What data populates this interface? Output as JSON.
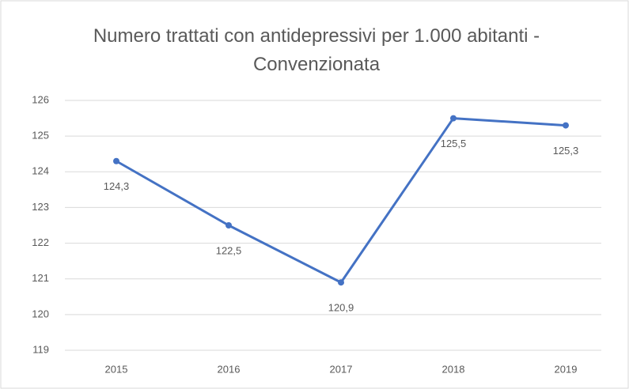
{
  "chart_data": {
    "type": "line",
    "title": "Numero trattati con antidepressivi  per 1.000 abitanti - Convenzionata",
    "categories": [
      "2015",
      "2016",
      "2017",
      "2018",
      "2019"
    ],
    "series": [
      {
        "name": "Numero trattati",
        "color": "#4472c4",
        "values": [
          124.3,
          122.5,
          120.9,
          125.5,
          125.3
        ],
        "value_labels": [
          "124,3",
          "122,5",
          "120,9",
          "125,5",
          "125,3"
        ]
      }
    ],
    "ylim": [
      119,
      126
    ],
    "yticks": [
      119,
      120,
      121,
      122,
      123,
      124,
      125,
      126
    ],
    "grid": true
  }
}
